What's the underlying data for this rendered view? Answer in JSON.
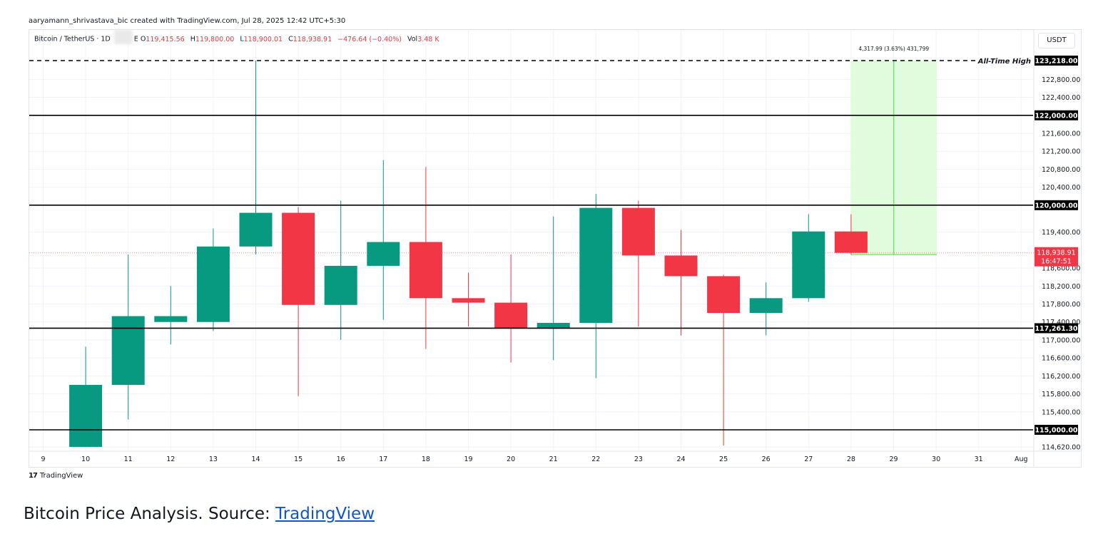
{
  "credit": "aaryamann_shrivastava_bic created with TradingView.com, Jul 28, 2025 12:42 UTC+5:30",
  "symbol": {
    "name": "Bitcoin / TetherUS · 1D",
    "tail": "E",
    "open_label": "O",
    "open": "119,415.56",
    "high_label": "H",
    "high": "119,800.00",
    "low_label": "L",
    "low": "118,900.01",
    "close_label": "C",
    "close": "118,938.91",
    "change": "−476.64 (−0.40%)",
    "vol_label": "Vol",
    "vol": "3.48 K"
  },
  "currency": "USDT",
  "logo_text": "TradingView",
  "caption": {
    "text": "Bitcoin Price Analysis. Source: ",
    "link": "TradingView"
  },
  "colors": {
    "up": "#089981",
    "down": "#f23645",
    "zone": "#dcfcd6",
    "zone_line": "#4cd447"
  },
  "chart_data": {
    "type": "candlestick",
    "ylim": [
      114400,
      123600
    ],
    "x_ticks": [
      "9",
      "10",
      "11",
      "12",
      "13",
      "14",
      "15",
      "16",
      "17",
      "18",
      "19",
      "20",
      "21",
      "22",
      "23",
      "24",
      "25",
      "26",
      "27",
      "28",
      "29",
      "30",
      "31",
      "Aug"
    ],
    "y_ticks": [
      "122,800.00",
      "122,400.00",
      "121,600.00",
      "121,200.00",
      "120,800.00",
      "120,400.00",
      "119,400.00",
      "118,600.00",
      "118,200.00",
      "117,800.00",
      "117,400.00",
      "117,000.00",
      "116,600.00",
      "116,200.00",
      "115,800.00",
      "115,400.00",
      "114,620.00"
    ],
    "candles": [
      {
        "date": "10",
        "o": 114620,
        "h": 116850,
        "l": 114620,
        "c": 116000
      },
      {
        "date": "11",
        "o": 116000,
        "h": 118900,
        "l": 115230,
        "c": 117530
      },
      {
        "date": "12",
        "o": 117400,
        "h": 118200,
        "l": 116900,
        "c": 117530
      },
      {
        "date": "13",
        "o": 117400,
        "h": 119480,
        "l": 117200,
        "c": 119080
      },
      {
        "date": "14",
        "o": 119080,
        "h": 123218,
        "l": 118900,
        "c": 119830
      },
      {
        "date": "15",
        "o": 119830,
        "h": 119960,
        "l": 115750,
        "c": 117780
      },
      {
        "date": "16",
        "o": 117780,
        "h": 120100,
        "l": 117000,
        "c": 118650
      },
      {
        "date": "17",
        "o": 118650,
        "h": 121000,
        "l": 117450,
        "c": 119180
      },
      {
        "date": "18",
        "o": 119180,
        "h": 120850,
        "l": 116800,
        "c": 117930
      },
      {
        "date": "19",
        "o": 117930,
        "h": 118500,
        "l": 117300,
        "c": 117830
      },
      {
        "date": "20",
        "o": 117830,
        "h": 118900,
        "l": 116500,
        "c": 117260
      },
      {
        "date": "21",
        "o": 117260,
        "h": 119750,
        "l": 116550,
        "c": 117380
      },
      {
        "date": "22",
        "o": 117380,
        "h": 120250,
        "l": 116150,
        "c": 119940
      },
      {
        "date": "23",
        "o": 119940,
        "h": 120100,
        "l": 117300,
        "c": 118880
      },
      {
        "date": "24",
        "o": 118880,
        "h": 119450,
        "l": 117100,
        "c": 118420
      },
      {
        "date": "25",
        "o": 118420,
        "h": 118450,
        "l": 114650,
        "c": 117600
      },
      {
        "date": "26",
        "o": 117600,
        "h": 118280,
        "l": 117100,
        "c": 117930
      },
      {
        "date": "27",
        "o": 117930,
        "h": 119800,
        "l": 117850,
        "c": 119415
      },
      {
        "date": "28",
        "o": 119415,
        "h": 119800,
        "l": 118900,
        "c": 118939
      }
    ],
    "horizontal_levels": [
      {
        "value": 123218,
        "label": "123,218.00",
        "style": "dashed",
        "annotation": "All-Time High"
      },
      {
        "value": 122000,
        "label": "122,000.00",
        "style": "solid"
      },
      {
        "value": 120000,
        "label": "120,000.00",
        "style": "solid"
      },
      {
        "value": 117261.3,
        "label": "117,261.30",
        "style": "solid"
      },
      {
        "value": 115000,
        "label": "115,000.00",
        "style": "solid"
      }
    ],
    "last_price": {
      "value": 118938.91,
      "label": "118,938.91",
      "countdown": "16:47:51"
    },
    "measure": {
      "from_date": "28",
      "to_date": "30",
      "from": 118900,
      "to": 123218,
      "label": "4,317.99 (3.63%) 431,799"
    }
  }
}
